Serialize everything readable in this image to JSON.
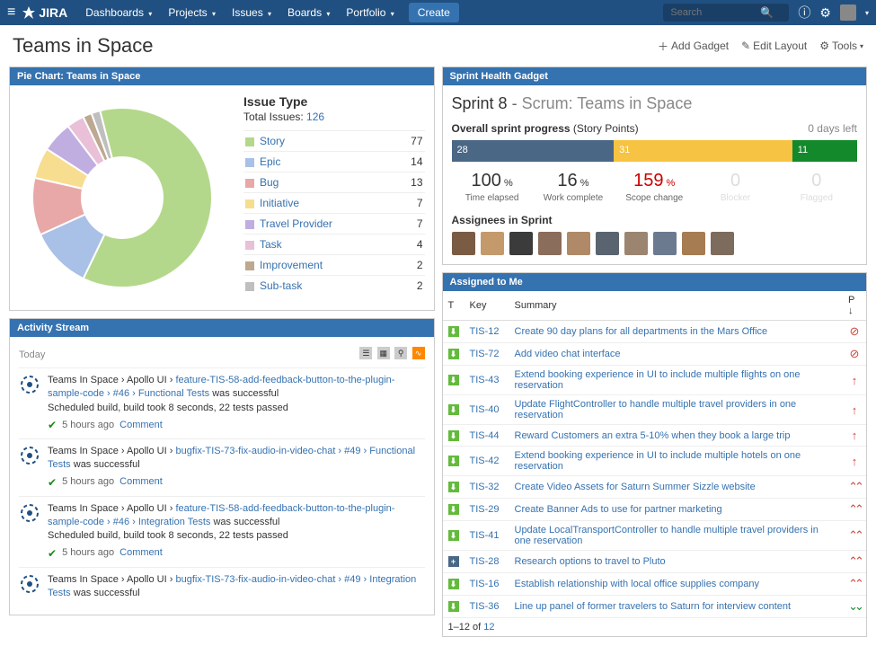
{
  "nav": {
    "logo": "JIRA",
    "menu": [
      "Dashboards",
      "Projects",
      "Issues",
      "Boards",
      "Portfolio"
    ],
    "create": "Create",
    "search_placeholder": "Search"
  },
  "page_title": "Teams in Space",
  "header_actions": {
    "add_gadget": "Add Gadget",
    "edit_layout": "Edit Layout",
    "tools": "Tools"
  },
  "pie": {
    "title": "Pie Chart: Teams in Space",
    "heading": "Issue Type",
    "total_label": "Total Issues:",
    "total": "126",
    "items": [
      {
        "label": "Story",
        "count": 77,
        "color": "#b4d88b"
      },
      {
        "label": "Epic",
        "count": 14,
        "color": "#a9c0e7"
      },
      {
        "label": "Bug",
        "count": 13,
        "color": "#e8a8a8"
      },
      {
        "label": "Initiative",
        "count": 7,
        "color": "#f7dd8f"
      },
      {
        "label": "Travel Provider",
        "count": 7,
        "color": "#c0aee0"
      },
      {
        "label": "Task",
        "count": 4,
        "color": "#e9c0d7"
      },
      {
        "label": "Improvement",
        "count": 2,
        "color": "#bda890"
      },
      {
        "label": "Sub-task",
        "count": 2,
        "color": "#bfbfbf"
      }
    ],
    "donut_inner": 45,
    "donut_outer": 100
  },
  "activity": {
    "title": "Activity Stream",
    "today": "Today",
    "items": [
      {
        "crumbs": "Teams In Space › Apollo UI ›",
        "link": "feature-TIS-58-add-feedback-button-to-the-plugin-sample-code › #46 › Functional Tests",
        "tail": " was successful",
        "detail": "Scheduled build, build took 8 seconds, 22 tests passed",
        "time": "5 hours ago",
        "comment": "Comment"
      },
      {
        "crumbs": "Teams In Space › Apollo UI ›",
        "link": "bugfix-TIS-73-fix-audio-in-video-chat › #49 › Functional Tests",
        "tail": " was successful",
        "detail": "",
        "time": "5 hours ago",
        "comment": "Comment"
      },
      {
        "crumbs": "Teams In Space › Apollo UI ›",
        "link": "feature-TIS-58-add-feedback-button-to-the-plugin-sample-code › #46 › Integration Tests",
        "tail": " was successful",
        "detail": "Scheduled build, build took 8 seconds, 22 tests passed",
        "time": "5 hours ago",
        "comment": "Comment"
      },
      {
        "crumbs": "Teams In Space › Apollo UI ›",
        "link": "bugfix-TIS-73-fix-audio-in-video-chat › #49 › Integration Tests",
        "tail": " was successful",
        "detail": "",
        "time": "",
        "comment": ""
      }
    ]
  },
  "sprint": {
    "gadget_title": "Sprint Health Gadget",
    "name": "Sprint 8",
    "board": "Scrum: Teams in Space",
    "progress_label": "Overall sprint progress",
    "progress_unit": "(Story Points)",
    "days_left": "0 days left",
    "segments": [
      {
        "val": "28",
        "color": "#4a6785",
        "width": 40
      },
      {
        "val": "31",
        "color": "#f6c342",
        "width": 44
      },
      {
        "val": "11",
        "color": "#14892c",
        "width": 16
      }
    ],
    "metrics": [
      {
        "val": "100",
        "unit": "%",
        "label": "Time elapsed",
        "cls": ""
      },
      {
        "val": "16",
        "unit": "%",
        "label": "Work complete",
        "cls": ""
      },
      {
        "val": "159",
        "unit": "%",
        "label": "Scope change",
        "cls": "red"
      },
      {
        "val": "0",
        "unit": "",
        "label": "Blocker",
        "cls": "grey"
      },
      {
        "val": "0",
        "unit": "",
        "label": "Flagged",
        "cls": "grey"
      }
    ],
    "assignees_label": "Assignees in Sprint",
    "assignee_count": 10,
    "avatar_colors": [
      "#7a5c44",
      "#c49a6c",
      "#3b3b3b",
      "#8a6d5a",
      "#b08968",
      "#5a6470",
      "#9c8570",
      "#6b7a8f",
      "#a67c52",
      "#7d6b5d"
    ]
  },
  "assigned": {
    "title": "Assigned to Me",
    "cols": {
      "t": "T",
      "key": "Key",
      "summary": "Summary",
      "p": "P"
    },
    "rows": [
      {
        "type": "story",
        "key": "TIS-12",
        "summary": "Create 90 day plans for all departments in the Mars Office",
        "p": "block"
      },
      {
        "type": "story",
        "key": "TIS-72",
        "summary": "Add video chat interface",
        "p": "block"
      },
      {
        "type": "story",
        "key": "TIS-43",
        "summary": "Extend booking experience in UI to include multiple flights on one reservation",
        "p": "up"
      },
      {
        "type": "story",
        "key": "TIS-40",
        "summary": "Update FlightController to handle multiple travel providers in one reservation",
        "p": "up"
      },
      {
        "type": "story",
        "key": "TIS-44",
        "summary": "Reward Customers an extra 5-10% when they book a large trip",
        "p": "up"
      },
      {
        "type": "story",
        "key": "TIS-42",
        "summary": "Extend booking experience in UI to include multiple hotels on one reservation",
        "p": "up"
      },
      {
        "type": "story",
        "key": "TIS-32",
        "summary": "Create Video Assets for Saturn Summer Sizzle website",
        "p": "dup"
      },
      {
        "type": "story",
        "key": "TIS-29",
        "summary": "Create Banner Ads to use for partner marketing",
        "p": "dup"
      },
      {
        "type": "story",
        "key": "TIS-41",
        "summary": "Update LocalTransportController to handle multiple travel providers in one reservation",
        "p": "dup"
      },
      {
        "type": "new",
        "key": "TIS-28",
        "summary": "Research options to travel to Pluto",
        "p": "dup"
      },
      {
        "type": "story",
        "key": "TIS-16",
        "summary": "Establish relationship with local office supplies company",
        "p": "dup"
      },
      {
        "type": "story",
        "key": "TIS-36",
        "summary": "Line up panel of former travelers to Saturn for interview content",
        "p": "ddown"
      }
    ],
    "pager_prefix": "1–12 of ",
    "pager_total": "12"
  },
  "colors": {
    "type_story": "#63ba3c",
    "type_new": "#4a6785",
    "prio_block": "#d04437",
    "prio_up": "#d04437",
    "prio_dup": "#d04437",
    "prio_down": "#14892c"
  }
}
